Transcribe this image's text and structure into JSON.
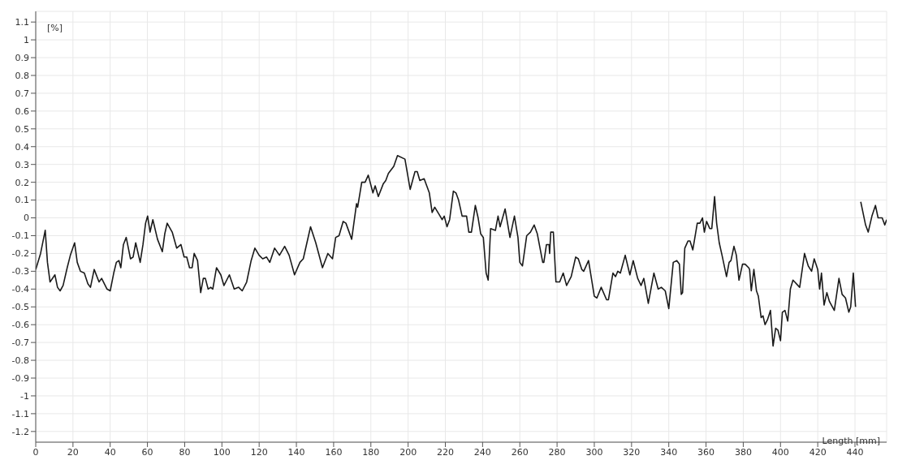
{
  "chart_data": {
    "type": "line",
    "xlabel": "Length [mm]",
    "ylabel": "[%]",
    "x": [
      0,
      2.6,
      5.1,
      6.3,
      7.7,
      10.3,
      11.7,
      13.1,
      14.7,
      16.9,
      18.6,
      20.9,
      22.3,
      24,
      26.1,
      28,
      29.4,
      31.4,
      34,
      35.4,
      38.3,
      40,
      41.9,
      43.3,
      44.7,
      45.7,
      47.1,
      48.6,
      50.9,
      52.3,
      53.7,
      56.1,
      57.6,
      59,
      60.1,
      61.4,
      62.9,
      65.4,
      68,
      69.3,
      70.6,
      73.3,
      75.7,
      78,
      79.7,
      81.1,
      82.6,
      84,
      85.1,
      86.9,
      88.6,
      90,
      91.1,
      92.6,
      94,
      95.1,
      97.1,
      99.4,
      101.1,
      104,
      106.6,
      109,
      110.9,
      113.3,
      115.7,
      117.7,
      120,
      121.9,
      124,
      125.7,
      128.3,
      130.9,
      133.7,
      136.1,
      139,
      141.9,
      143.7,
      147.6,
      150.4,
      154,
      156.9,
      159.4,
      161.1,
      162.9,
      165.1,
      166.6,
      169.7,
      172.3,
      172.9,
      175.1,
      176.9,
      178.6,
      181.1,
      182.3,
      184,
      186.6,
      188,
      189.4,
      192.3,
      194.3,
      198.3,
      201.1,
      203.7,
      204.9,
      206.3,
      208.6,
      211.4,
      212.9,
      214.3,
      216.6,
      218.3,
      219.4,
      220.9,
      222.3,
      224.3,
      225.7,
      227.1,
      229,
      231.4,
      232.6,
      234,
      236.1,
      237.6,
      239,
      240.4,
      241.9,
      243,
      244.3,
      246.9,
      248.3,
      249.4,
      252.1,
      254.7,
      257.1,
      259,
      260,
      261.4,
      263.7,
      265.7,
      267.7,
      269.4,
      272.3,
      272.9,
      274.3,
      275.7,
      276,
      276.6,
      278,
      279.4,
      281.4,
      283.3,
      285.1,
      287.6,
      290,
      291.4,
      293.3,
      294.3,
      296.9,
      300,
      301.4,
      303.7,
      306.6,
      307.6,
      310,
      311.4,
      312.6,
      314,
      316.6,
      319.1,
      320.9,
      323.3,
      325.1,
      326.6,
      329,
      332,
      334.3,
      336,
      338.1,
      340,
      342.4,
      344.3,
      345.7,
      346.7,
      347.4,
      348.6,
      350.3,
      351.4,
      352.9,
      355.3,
      356.7,
      358.1,
      359.1,
      360.3,
      362,
      363.1,
      364.6,
      365.7,
      367.1,
      368.6,
      371,
      372.4,
      373.4,
      375,
      376.3,
      377.7,
      379.6,
      381,
      382.9,
      383.4,
      384.3,
      385.7,
      387.1,
      388.1,
      389.6,
      390.6,
      391.7,
      393.1,
      394.6,
      396,
      397.4,
      398.6,
      400,
      401,
      402.4,
      403.9,
      405.3,
      406.7,
      410.3,
      412.9,
      414.9,
      416.7,
      418.1,
      420,
      421,
      422,
      423.4,
      424.9,
      426.3,
      428.9,
      431.4,
      433.1,
      434.9,
      436.7,
      437.7,
      439.1,
      440.3,
      441.7,
      443.1,
      445.7,
      447.1,
      449.1,
      451,
      452.4,
      454.6,
      456,
      457
    ],
    "series": [
      {
        "color": "#1a1a1a",
        "values": [
          -0.29,
          -0.2,
          -0.07,
          -0.25,
          -0.36,
          -0.32,
          -0.39,
          -0.41,
          -0.38,
          -0.28,
          -0.21,
          -0.14,
          -0.25,
          -0.3,
          -0.31,
          -0.37,
          -0.39,
          -0.29,
          -0.36,
          -0.34,
          -0.4,
          -0.41,
          -0.31,
          -0.25,
          -0.24,
          -0.28,
          -0.15,
          -0.11,
          -0.23,
          -0.22,
          -0.14,
          -0.25,
          -0.15,
          -0.03,
          0.01,
          -0.08,
          -0.01,
          -0.12,
          -0.19,
          -0.09,
          -0.03,
          -0.08,
          -0.17,
          -0.15,
          -0.22,
          -0.22,
          -0.28,
          -0.28,
          -0.2,
          -0.24,
          -0.42,
          -0.34,
          -0.34,
          -0.4,
          -0.39,
          -0.4,
          -0.28,
          -0.32,
          -0.38,
          -0.32,
          -0.4,
          -0.39,
          -0.41,
          -0.36,
          -0.24,
          -0.17,
          -0.21,
          -0.23,
          -0.22,
          -0.25,
          -0.17,
          -0.21,
          -0.16,
          -0.21,
          -0.32,
          -0.25,
          -0.23,
          -0.05,
          -0.14,
          -0.28,
          -0.2,
          -0.23,
          -0.11,
          -0.1,
          -0.02,
          -0.03,
          -0.12,
          0.08,
          0.06,
          0.2,
          0.2,
          0.24,
          0.14,
          0.18,
          0.12,
          0.19,
          0.21,
          0.25,
          0.29,
          0.35,
          0.33,
          0.16,
          0.26,
          0.26,
          0.21,
          0.22,
          0.14,
          0.03,
          0.06,
          0.02,
          -0.01,
          0.01,
          -0.05,
          -0.01,
          0.15,
          0.14,
          0.1,
          0.01,
          0.01,
          -0.08,
          -0.08,
          0.07,
          0,
          -0.09,
          -0.11,
          -0.31,
          -0.35,
          -0.06,
          -0.07,
          0.01,
          -0.05,
          0.05,
          -0.11,
          0.01,
          -0.11,
          -0.25,
          -0.27,
          -0.1,
          -0.08,
          -0.04,
          -0.09,
          -0.25,
          -0.25,
          -0.15,
          -0.15,
          -0.2,
          -0.08,
          -0.08,
          -0.36,
          -0.36,
          -0.31,
          -0.38,
          -0.33,
          -0.22,
          -0.23,
          -0.29,
          -0.3,
          -0.24,
          -0.44,
          -0.45,
          -0.39,
          -0.46,
          -0.46,
          -0.31,
          -0.33,
          -0.3,
          -0.31,
          -0.21,
          -0.32,
          -0.24,
          -0.34,
          -0.38,
          -0.34,
          -0.48,
          -0.31,
          -0.4,
          -0.39,
          -0.41,
          -0.51,
          -0.25,
          -0.24,
          -0.26,
          -0.43,
          -0.42,
          -0.17,
          -0.13,
          -0.13,
          -0.18,
          -0.03,
          -0.03,
          0,
          -0.08,
          -0.02,
          -0.06,
          -0.06,
          0.12,
          -0.03,
          -0.14,
          -0.21,
          -0.33,
          -0.25,
          -0.24,
          -0.16,
          -0.21,
          -0.35,
          -0.26,
          -0.26,
          -0.28,
          -0.29,
          -0.41,
          -0.29,
          -0.41,
          -0.44,
          -0.56,
          -0.55,
          -0.6,
          -0.57,
          -0.52,
          -0.72,
          -0.62,
          -0.63,
          -0.69,
          -0.53,
          -0.52,
          -0.58,
          -0.4,
          -0.35,
          -0.39,
          -0.2,
          -0.27,
          -0.3,
          -0.23,
          -0.29,
          -0.4,
          -0.31,
          -0.49,
          -0.42,
          -0.47,
          -0.52,
          -0.34,
          -0.43,
          -0.45,
          -0.53,
          -0.5,
          -0.31,
          -0.5,
          null,
          0.09,
          -0.04,
          -0.08,
          0.01,
          0.07,
          0,
          0,
          -0.04,
          -0.01
        ]
      }
    ],
    "xlim": [
      0,
      457
    ],
    "ylim": [
      -1.26,
      1.16
    ],
    "xticks": [
      0,
      20,
      40,
      60,
      80,
      100,
      120,
      140,
      160,
      180,
      200,
      220,
      240,
      260,
      280,
      300,
      320,
      340,
      360,
      380,
      400,
      420,
      440
    ],
    "yticks": [
      -1.2,
      -1.1,
      -1,
      -0.9,
      -0.8,
      -0.7,
      -0.6,
      -0.5,
      -0.4,
      -0.3,
      -0.2,
      -0.1,
      0,
      0.1,
      0.2,
      0.3,
      0.4,
      0.5,
      0.6,
      0.7,
      0.8,
      0.9,
      1,
      1.1
    ],
    "grid": true,
    "marker": "none",
    "line_style": "solid"
  }
}
